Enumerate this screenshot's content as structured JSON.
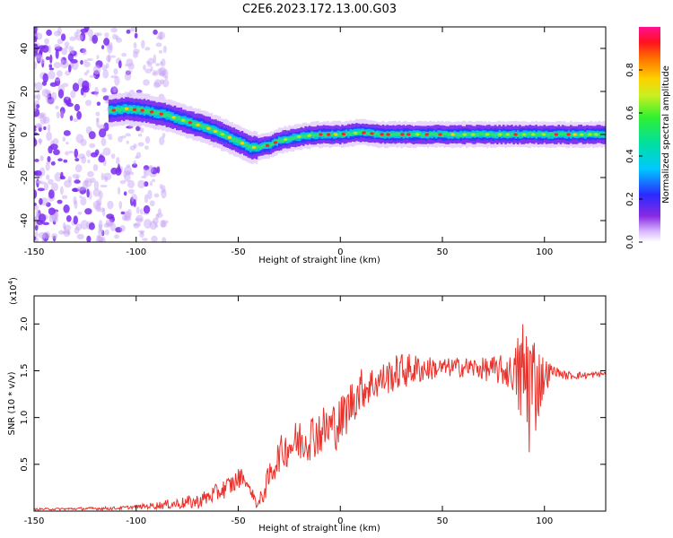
{
  "title": "C2E6.2023.172.13.00.G03",
  "colors": {
    "snr_line": "#e8322c",
    "spectrogram_noise": "#7b2cf0",
    "axes": "#000000"
  },
  "chart_data": [
    {
      "type": "heatmap",
      "xlabel": "Height of straight line (km)",
      "ylabel": "Frequency (Hz)",
      "xlim": [
        -150,
        130
      ],
      "ylim": [
        -50,
        50
      ],
      "x_ticks": [
        -150,
        -100,
        -50,
        0,
        50,
        100
      ],
      "y_ticks": [
        -40,
        -20,
        0,
        20,
        40
      ],
      "colorbar": {
        "label": "Normalized spectral amplitude",
        "range": [
          0,
          1
        ],
        "ticks": [
          "0.0",
          "0.2",
          "0.4",
          "0.6",
          "0.8"
        ],
        "colormap": "rainbow-violet-to-magenta"
      },
      "ridge": {
        "x": [
          -113,
          -105,
          -95,
          -85,
          -75,
          -65,
          -55,
          -48,
          -44,
          -40,
          -35,
          -30,
          -20,
          -10,
          0,
          10,
          20,
          40,
          60,
          80,
          100,
          120,
          130
        ],
        "y": [
          11,
          12,
          11,
          9,
          6,
          3,
          -1,
          -4,
          -6,
          -6,
          -5,
          -3,
          -1,
          0,
          0,
          1,
          0,
          0,
          0,
          0,
          0,
          0,
          0
        ]
      },
      "noise_region_x": [
        -150,
        -85
      ]
    },
    {
      "type": "line",
      "xlabel": "Height of straight line (km)",
      "ylabel": "SNR (10 * v/v)",
      "exponent_label": "(x10",
      "exponent_power": "4",
      "exponent_close": ")",
      "xlim": [
        -150,
        130
      ],
      "ylim": [
        0,
        2.3
      ],
      "x_ticks": [
        -150,
        -100,
        -50,
        0,
        50,
        100
      ],
      "y_ticks": [
        0.5,
        1.0,
        1.5,
        2.0
      ],
      "y_tick_labels": [
        "0.5",
        "1.0",
        "1.5",
        "2.0"
      ],
      "series": [
        {
          "trend_x": [
            -150,
            -110,
            -90,
            -70,
            -60,
            -52,
            -48,
            -44,
            -40,
            -35,
            -30,
            -25,
            -20,
            -15,
            -10,
            -5,
            0,
            5,
            10,
            15,
            20,
            25,
            30,
            40,
            50,
            60,
            70,
            80,
            88,
            92,
            96,
            100,
            105,
            110,
            120,
            130
          ],
          "trend_y": [
            0.02,
            0.03,
            0.06,
            0.1,
            0.2,
            0.3,
            0.38,
            0.22,
            0.06,
            0.35,
            0.6,
            0.7,
            0.75,
            0.8,
            0.85,
            0.9,
            0.95,
            1.15,
            1.3,
            1.35,
            1.4,
            1.45,
            1.5,
            1.52,
            1.53,
            1.54,
            1.52,
            1.5,
            1.45,
            1.4,
            1.35,
            1.45,
            1.5,
            1.45,
            1.45,
            1.47
          ],
          "noise_x": [
            -150,
            -100,
            -60,
            -50,
            -45,
            -35,
            -20,
            0,
            20,
            30,
            50,
            70,
            85,
            88,
            92,
            96,
            100,
            105,
            130
          ],
          "noise_amp": [
            0.01,
            0.02,
            0.1,
            0.12,
            0.03,
            0.15,
            0.25,
            0.28,
            0.18,
            0.2,
            0.1,
            0.12,
            0.2,
            0.6,
            0.9,
            0.5,
            0.2,
            0.05,
            0.03
          ]
        }
      ]
    }
  ]
}
